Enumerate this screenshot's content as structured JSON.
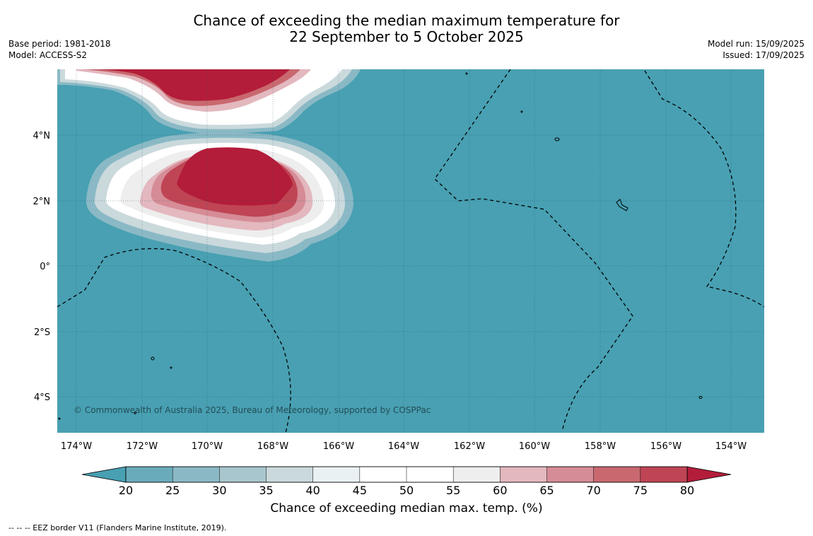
{
  "title": {
    "line1": "Chance of exceeding the median maximum temperature for",
    "line2": "22 September to 5 October 2025"
  },
  "meta_left": {
    "base_period": "Base period: 1981-2018",
    "model": "Model: ACCESS-S2"
  },
  "meta_right": {
    "model_run": "Model run: 15/09/2025",
    "issued": "Issued: 17/09/2025"
  },
  "map": {
    "lon_ticks": [
      "174°W",
      "172°W",
      "170°W",
      "168°W",
      "166°W",
      "164°W",
      "162°W",
      "160°W",
      "158°W",
      "156°W",
      "154°W"
    ],
    "lat_ticks": [
      "4°N",
      "2°N",
      "0°",
      "2°S",
      "4°S"
    ],
    "copyright": "© Commonwealth of Australia 2025, Bureau of Meteorology, supported by COSPPac",
    "background_color": "#48a0b2",
    "high_color": "#b31d3a"
  },
  "colorbar": {
    "label": "Chance of exceeding median max. temp. (%)",
    "ticks": [
      "20",
      "25",
      "30",
      "35",
      "40",
      "45",
      "50",
      "55",
      "60",
      "65",
      "70",
      "75",
      "80"
    ],
    "colors": [
      "#6aabbb",
      "#8ab9c5",
      "#a8c6cd",
      "#cad9dc",
      "#eaf1f2",
      "#ffffff",
      "#ffffff",
      "#eeeeee",
      "#e3b8bf",
      "#d68c96",
      "#c9686f",
      "#bf4555"
    ],
    "low_extend_color": "#48a0b2",
    "high_extend_color": "#b31d3a"
  },
  "footer": "--  --  -- EEZ border V11 (Flanders Marine Institute, 2019)."
}
